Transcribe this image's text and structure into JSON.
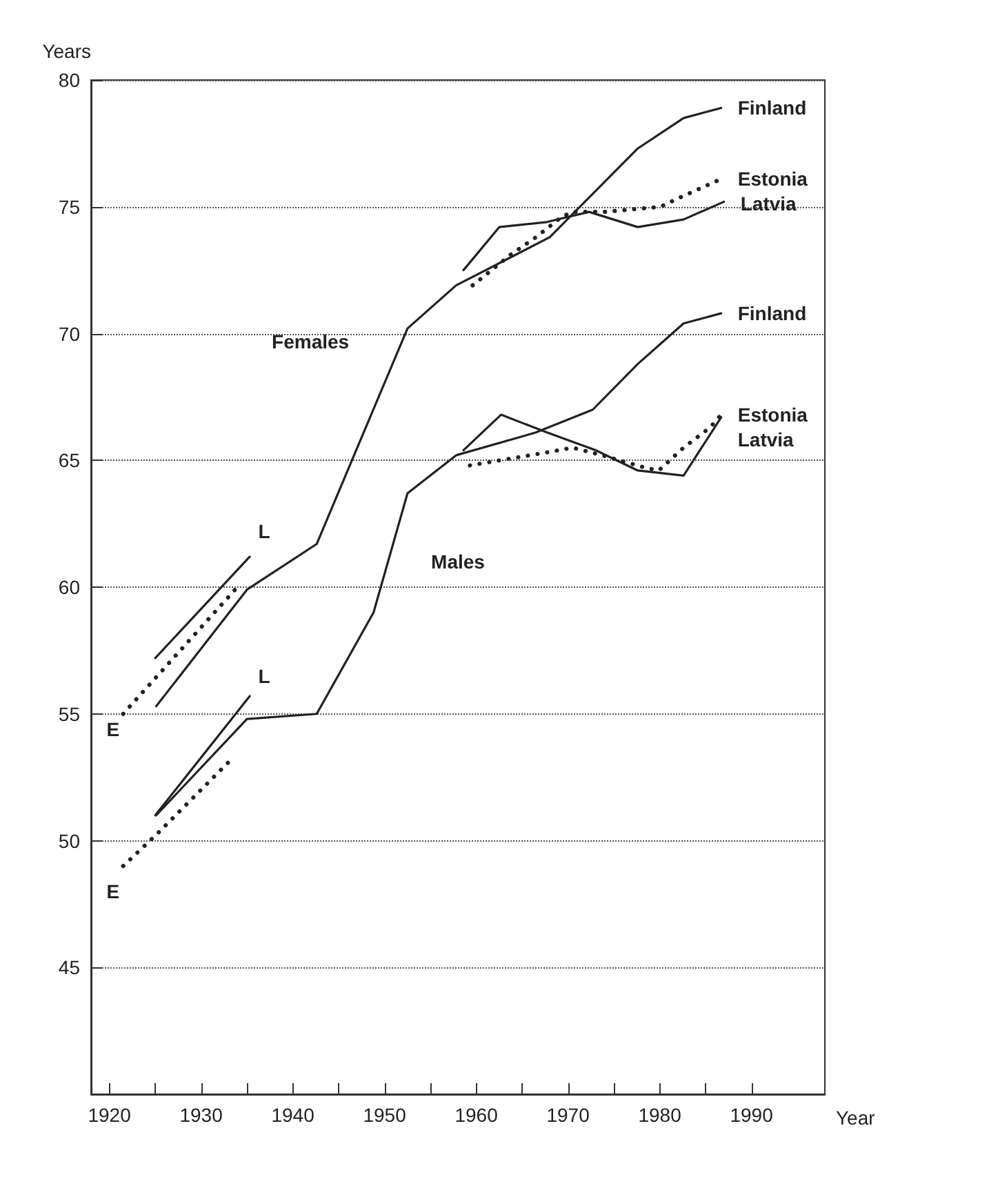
{
  "chart_data": {
    "type": "line",
    "ylabel": "Years",
    "xlabel": "Year",
    "xlim": [
      1918,
      1998
    ],
    "ylim": [
      40,
      80
    ],
    "xticks": [
      1920,
      {
        "value": 1925,
        "label": null
      },
      1930,
      {
        "value": 1935,
        "label": null
      },
      1940,
      {
        "value": 1945,
        "label": null
      },
      1950,
      {
        "value": 1955,
        "label": null
      },
      1960,
      {
        "value": 1965,
        "label": null
      },
      1970,
      {
        "value": 1975,
        "label": null
      },
      1980,
      {
        "value": 1985,
        "label": null
      },
      1990
    ],
    "yticks": [
      45,
      50,
      55,
      60,
      65,
      70,
      75,
      80
    ],
    "grid": "y",
    "marker": "none",
    "line_style": "solid",
    "series": [
      {
        "name": "Finland",
        "color": "#222222",
        "x": [
          1925.1,
          1935,
          1942.6,
          1952.5,
          1957.8,
          1968,
          1977.6,
          1982.6,
          1986.7
        ],
        "values": [
          55.3,
          59.9,
          61.7,
          70.2,
          71.9,
          73.8,
          77.3,
          78.5,
          78.9
        ]
      },
      {
        "name": "Estonia",
        "color": "#222222",
        "line_style": "dotted",
        "x": [
          1921.5,
          1933.7,
          1946,
          1959.6,
          1963.7,
          1966.5,
          1969.3,
          1970.5,
          1973.9,
          1980.1,
          1981.8,
          1986.7
        ],
        "values": [
          55.0,
          59.9,
          null,
          71.9,
          73.1,
          73.8,
          74.6,
          74.8,
          74.8,
          75.0,
          75.3,
          76.1
        ]
      },
      {
        "name": "Latvia",
        "color": "#222222",
        "x": [
          1925,
          1935.3,
          1946,
          1958.6,
          1962.5,
          1967.7,
          1972.3,
          1977.6,
          1982.6,
          1987
        ],
        "values": [
          57.2,
          61.2,
          null,
          72.5,
          74.2,
          74.4,
          74.8,
          74.2,
          74.5,
          75.2
        ]
      },
      {
        "name": "Finland",
        "color": "#222222",
        "x": [
          1925.1,
          1935,
          1942.6,
          1948.8,
          1952.5,
          1957.8,
          1966.5,
          1972.7,
          1977.6,
          1982.6,
          1986.7
        ],
        "values": [
          51.0,
          54.8,
          55.0,
          59.0,
          63.7,
          65.2,
          66.1,
          67.0,
          68.8,
          70.4,
          70.8
        ]
      },
      {
        "name": "Estonia",
        "color": "#222222",
        "line_style": "dotted",
        "x": [
          1921.5,
          1925.3,
          1933,
          1946,
          1959.3,
          1964.2,
          1967.5,
          1970.5,
          1973.7,
          1978.5,
          1979.9,
          1981.4,
          1982.6,
          1985.5,
          1986.7
        ],
        "values": [
          49.0,
          50.3,
          53.1,
          null,
          64.8,
          65.1,
          65.3,
          65.5,
          65.2,
          64.7,
          64.6,
          65.1,
          65.5,
          66.3,
          66.8
        ]
      },
      {
        "name": "Latvia",
        "color": "#222222",
        "x": [
          1925,
          1935.3,
          1946,
          1958.6,
          1962.7,
          1967.7,
          1973,
          1977.6,
          1982.6,
          1986.7
        ],
        "values": [
          51.0,
          55.7,
          null,
          65.4,
          66.8,
          66.1,
          65.4,
          64.6,
          64.4,
          66.7
        ]
      }
    ],
    "annotations": [
      "Females",
      "Males",
      "L",
      "L",
      "E",
      "E"
    ]
  }
}
